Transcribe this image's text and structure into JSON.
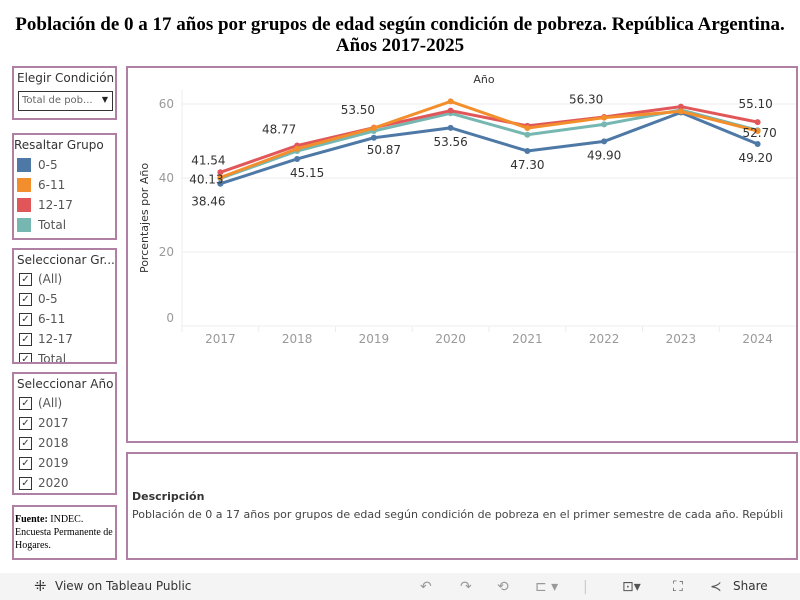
{
  "title": "Población de 0 a 17 años por grupos de edad según condición de pobreza. República Argentina. Años 2017-2025",
  "filters": {
    "condicion": {
      "title": "Elegir Condición",
      "value": "Total de pob..."
    },
    "resaltar": {
      "title": "Resaltar Grupo",
      "items": [
        {
          "label": "0-5",
          "color": "#4e79a7"
        },
        {
          "label": "6-11",
          "color": "#f28e2b"
        },
        {
          "label": "12-17",
          "color": "#e15759"
        },
        {
          "label": "Total",
          "color": "#76b7b2"
        }
      ]
    },
    "grupo": {
      "title": "Seleccionar Gr...",
      "items": [
        "(All)",
        "0-5",
        "6-11",
        "12-17",
        "Total"
      ]
    },
    "anio": {
      "title": "Seleccionar Año",
      "items": [
        "(All)",
        "2017",
        "2018",
        "2019",
        "2020"
      ]
    }
  },
  "source": {
    "bold": "Fuente:",
    "text": "INDEC. Encuesta Permanente de Hogares."
  },
  "description": {
    "title": "Descripción",
    "text": "Población de 0 a 17 años por grupos de edad según condición de pobreza en el primer semestre de cada año. Repúbli"
  },
  "toolbar": {
    "view": "View on Tableau Public",
    "share": "Share"
  },
  "chart_data": {
    "type": "line",
    "title": "Año",
    "xlabel": "",
    "ylabel": "Porcentajes por Año",
    "ylim": [
      0,
      63
    ],
    "yticks": [
      "0",
      "20",
      "40",
      "60"
    ],
    "categories": [
      "2017",
      "2018",
      "2019",
      "2020",
      "2021",
      "2022",
      "2023",
      "2024"
    ],
    "grid": true,
    "series": [
      {
        "name": "Total",
        "color": "#76b7b2",
        "values": [
          39.9,
          47.3,
          52.7,
          57.5,
          51.7,
          54.5,
          58.4,
          52.9
        ]
      },
      {
        "name": "0-5",
        "color": "#4e79a7",
        "values": [
          38.46,
          45.15,
          50.87,
          53.56,
          47.3,
          49.9,
          57.7,
          49.2
        ]
      },
      {
        "name": "12-17",
        "color": "#e15759",
        "values": [
          41.54,
          48.77,
          53.6,
          58.2,
          54.1,
          56.5,
          59.3,
          55.1
        ]
      },
      {
        "name": "6-11",
        "color": "#f28e2b",
        "values": [
          40.13,
          47.9,
          53.5,
          60.7,
          53.5,
          56.3,
          58.0,
          52.7
        ]
      }
    ],
    "labels": [
      {
        "series": "12-17",
        "year": "2017",
        "text": "41.54"
      },
      {
        "series": "6-11",
        "year": "2017",
        "text": "40.13"
      },
      {
        "series": "0-5",
        "year": "2017",
        "text": "38.46"
      },
      {
        "series": "12-17",
        "year": "2018",
        "text": "48.77"
      },
      {
        "series": "0-5",
        "year": "2018",
        "text": "45.15"
      },
      {
        "series": "6-11",
        "year": "2019",
        "text": "53.50"
      },
      {
        "series": "0-5",
        "year": "2019",
        "text": "50.87"
      },
      {
        "series": "0-5",
        "year": "2020",
        "text": "53.56"
      },
      {
        "series": "0-5",
        "year": "2021",
        "text": "47.30"
      },
      {
        "series": "6-11",
        "year": "2022",
        "text": "56.30"
      },
      {
        "series": "0-5",
        "year": "2022",
        "text": "49.90"
      },
      {
        "series": "12-17",
        "year": "2024",
        "text": "55.10"
      },
      {
        "series": "6-11",
        "year": "2024",
        "text": "52.70"
      },
      {
        "series": "0-5",
        "year": "2024",
        "text": "49.20"
      }
    ]
  }
}
